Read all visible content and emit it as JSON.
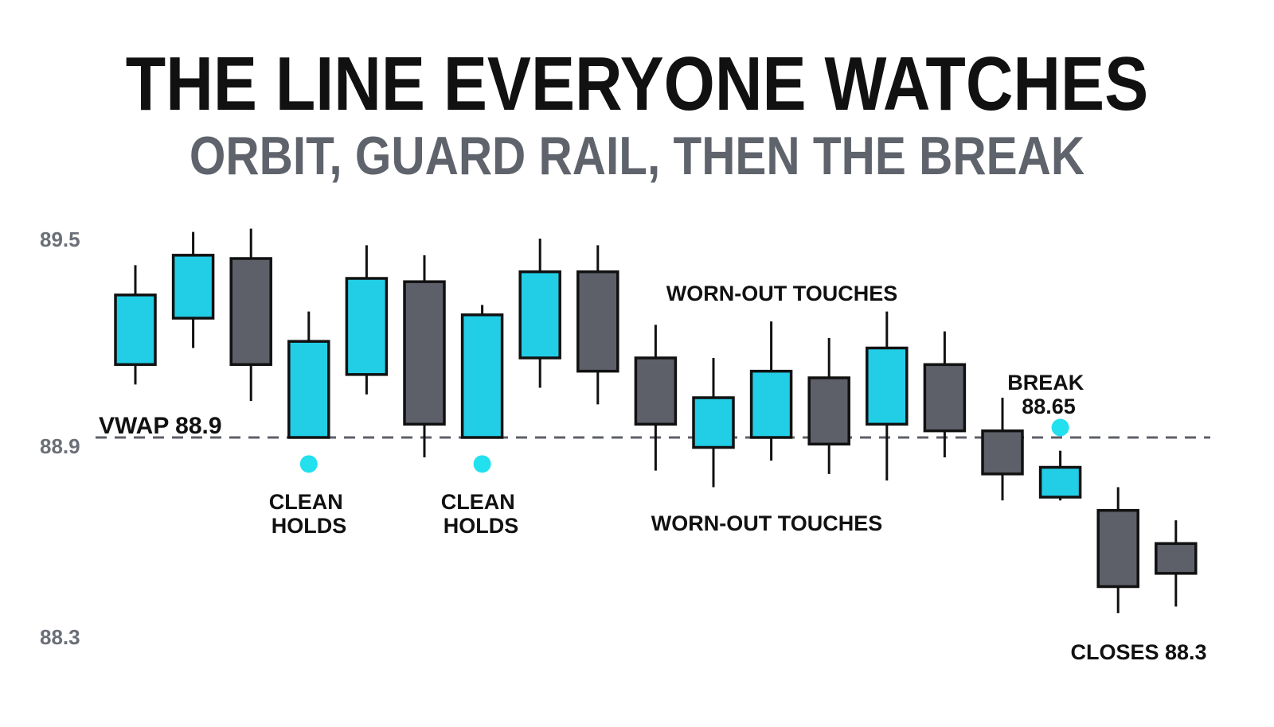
{
  "title": "THE LINE EVERYONE WATCHES",
  "subtitle": "ORBIT, GUARD RAIL, THEN THE BREAK",
  "colors": {
    "up": "#22cde6",
    "down": "#5d6069",
    "outline": "#111111",
    "vwap_line": "#5d6069",
    "marker": "#22e0ee",
    "tick_text": "#6b6f77"
  },
  "chart_data": {
    "type": "candlestick",
    "ylim": [
      88.3,
      89.5
    ],
    "yticks": [
      "89.5",
      "88.9",
      "88.3"
    ],
    "grid": false,
    "legend": "none",
    "reference_line": {
      "label": "VWAP 88.9",
      "value": 88.9,
      "style": "dashed"
    },
    "candles": [
      {
        "open": 89.12,
        "close": 89.33,
        "high": 89.42,
        "low": 89.06,
        "dir": "up"
      },
      {
        "open": 89.26,
        "close": 89.45,
        "high": 89.52,
        "low": 89.17,
        "dir": "up"
      },
      {
        "open": 89.44,
        "close": 89.12,
        "high": 89.53,
        "low": 89.01,
        "dir": "down"
      },
      {
        "open": 88.9,
        "close": 89.19,
        "high": 89.28,
        "low": 88.9,
        "dir": "up"
      },
      {
        "open": 89.09,
        "close": 89.38,
        "high": 89.48,
        "low": 89.03,
        "dir": "up"
      },
      {
        "open": 89.37,
        "close": 88.94,
        "high": 89.45,
        "low": 88.84,
        "dir": "down"
      },
      {
        "open": 88.9,
        "close": 89.27,
        "high": 89.3,
        "low": 88.9,
        "dir": "up"
      },
      {
        "open": 89.14,
        "close": 89.4,
        "high": 89.5,
        "low": 89.05,
        "dir": "up"
      },
      {
        "open": 89.4,
        "close": 89.1,
        "high": 89.48,
        "low": 89.0,
        "dir": "down"
      },
      {
        "open": 89.14,
        "close": 88.94,
        "high": 89.24,
        "low": 88.8,
        "dir": "down"
      },
      {
        "open": 88.87,
        "close": 89.02,
        "high": 89.14,
        "low": 88.75,
        "dir": "up"
      },
      {
        "open": 88.9,
        "close": 89.1,
        "high": 89.25,
        "low": 88.83,
        "dir": "up"
      },
      {
        "open": 89.08,
        "close": 88.88,
        "high": 89.2,
        "low": 88.79,
        "dir": "down"
      },
      {
        "open": 88.94,
        "close": 89.17,
        "high": 89.28,
        "low": 88.77,
        "dir": "up"
      },
      {
        "open": 89.12,
        "close": 88.92,
        "high": 89.22,
        "low": 88.84,
        "dir": "down"
      },
      {
        "open": 88.92,
        "close": 88.79,
        "high": 89.02,
        "low": 88.71,
        "dir": "down"
      },
      {
        "open": 88.72,
        "close": 88.81,
        "high": 88.86,
        "low": 88.71,
        "dir": "up"
      },
      {
        "open": 88.68,
        "close": 88.45,
        "high": 88.75,
        "low": 88.37,
        "dir": "down"
      },
      {
        "open": 88.58,
        "close": 88.49,
        "high": 88.65,
        "low": 88.39,
        "dir": "down"
      }
    ],
    "markers": [
      {
        "candle": 3,
        "value": 88.82
      },
      {
        "candle": 6,
        "value": 88.82
      },
      {
        "candle": 16,
        "value": 88.93
      }
    ],
    "annotations": [
      {
        "lines": [
          "VWAP 88.9"
        ]
      },
      {
        "lines": [
          "CLEAN",
          "HOLDS"
        ]
      },
      {
        "lines": [
          "CLEAN",
          "HOLDS"
        ]
      },
      {
        "lines": [
          "WORN-OUT TOUCHES"
        ]
      },
      {
        "lines": [
          "WORN-OUT TOUCHES"
        ]
      },
      {
        "lines": [
          "BREAK",
          "88.65"
        ]
      },
      {
        "lines": [
          "CLOSES 88.3"
        ]
      }
    ]
  }
}
